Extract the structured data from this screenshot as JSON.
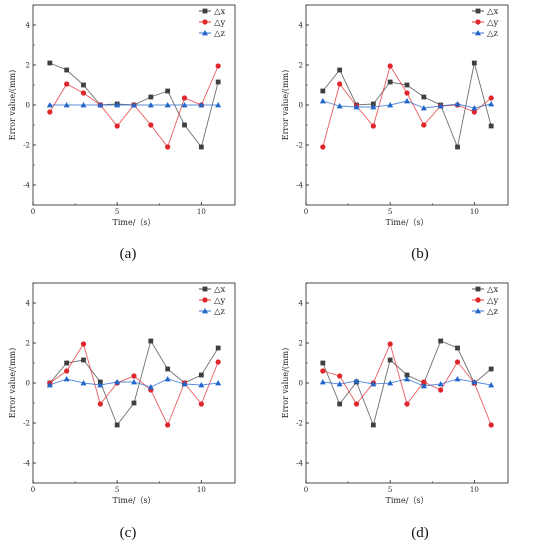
{
  "colors": {
    "dx": "#3f3f3f",
    "dy": "#e0262a",
    "dz": "#2266cc"
  },
  "chart_data": [
    {
      "type": "line",
      "caption": "(a)",
      "xlabel": "Time/（s）",
      "ylabel": "Error value/(mm)",
      "xlim": [
        0,
        12
      ],
      "ylim": [
        -5,
        5
      ],
      "xticks": [
        "0",
        "5",
        "10"
      ],
      "yticks": [
        "-4",
        "-2",
        "0",
        "2",
        "4"
      ],
      "legend_position": "top-right",
      "x": [
        1,
        2,
        3,
        4,
        5,
        6,
        7,
        8,
        9,
        10,
        11
      ],
      "series": [
        {
          "name": "△x",
          "marker": "square",
          "values": [
            2.1,
            1.75,
            1.0,
            0.0,
            0.05,
            0.0,
            0.4,
            0.7,
            -1.0,
            -2.1,
            1.15
          ]
        },
        {
          "name": "△y",
          "marker": "circle",
          "values": [
            -0.35,
            1.05,
            0.6,
            0.0,
            -1.05,
            0.0,
            -1.0,
            -2.1,
            0.35,
            0.0,
            1.95
          ]
        },
        {
          "name": "△z",
          "marker": "triangle",
          "values": [
            0.0,
            0.0,
            0.0,
            0.0,
            0.0,
            0.0,
            0.0,
            0.0,
            0.0,
            0.0,
            0.0
          ]
        }
      ]
    },
    {
      "type": "line",
      "caption": "(b)",
      "xlabel": "Time/（s）",
      "ylabel": "Error value/(mm)",
      "xlim": [
        0,
        12
      ],
      "ylim": [
        -5,
        5
      ],
      "xticks": [
        "0",
        "5",
        "10"
      ],
      "yticks": [
        "-4",
        "-2",
        "0",
        "2",
        "4"
      ],
      "legend_position": "top-right",
      "x": [
        1,
        2,
        3,
        4,
        5,
        6,
        7,
        8,
        9,
        10,
        11
      ],
      "series": [
        {
          "name": "△x",
          "marker": "square",
          "values": [
            0.7,
            1.75,
            0.0,
            0.05,
            1.15,
            1.0,
            0.4,
            0.0,
            -2.1,
            2.1,
            -1.05
          ]
        },
        {
          "name": "△y",
          "marker": "circle",
          "values": [
            -2.1,
            1.05,
            -0.05,
            -1.05,
            1.95,
            0.6,
            -1.0,
            -0.05,
            0.0,
            -0.35,
            0.35
          ]
        },
        {
          "name": "△z",
          "marker": "triangle",
          "values": [
            0.2,
            -0.05,
            -0.1,
            -0.1,
            0.0,
            0.2,
            -0.15,
            -0.05,
            0.05,
            -0.15,
            0.05
          ]
        }
      ]
    },
    {
      "type": "line",
      "caption": "(c)",
      "xlabel": "Time/（s）",
      "ylabel": "Error value/(mm)",
      "xlim": [
        0,
        12
      ],
      "ylim": [
        -5,
        5
      ],
      "xticks": [
        "0",
        "5",
        "10"
      ],
      "yticks": [
        "-4",
        "-2",
        "0",
        "2",
        "4"
      ],
      "legend_position": "top-right",
      "x": [
        1,
        2,
        3,
        4,
        5,
        6,
        7,
        8,
        9,
        10,
        11
      ],
      "series": [
        {
          "name": "△x",
          "marker": "square",
          "values": [
            0.0,
            1.0,
            1.15,
            0.05,
            -2.1,
            -1.0,
            2.1,
            0.7,
            0.0,
            0.4,
            1.75
          ]
        },
        {
          "name": "△y",
          "marker": "circle",
          "values": [
            0.0,
            0.6,
            1.95,
            -1.05,
            0.0,
            0.35,
            -0.35,
            -2.1,
            0.0,
            -1.05,
            1.05
          ]
        },
        {
          "name": "△z",
          "marker": "triangle",
          "values": [
            -0.1,
            0.2,
            0.0,
            -0.1,
            0.05,
            0.05,
            -0.2,
            0.2,
            -0.05,
            -0.1,
            0.0
          ]
        }
      ]
    },
    {
      "type": "line",
      "caption": "(d)",
      "xlabel": "Time/（s）",
      "ylabel": "Error value/(mm)",
      "xlim": [
        0,
        12
      ],
      "ylim": [
        -5,
        5
      ],
      "xticks": [
        "0",
        "5",
        "10"
      ],
      "yticks": [
        "-4",
        "-2",
        "0",
        "2",
        "4"
      ],
      "legend_position": "top-right",
      "x": [
        1,
        2,
        3,
        4,
        5,
        6,
        7,
        8,
        9,
        10,
        11
      ],
      "series": [
        {
          "name": "△x",
          "marker": "square",
          "values": [
            1.0,
            -1.05,
            0.05,
            -2.1,
            1.15,
            0.4,
            0.0,
            2.1,
            1.75,
            0.0,
            0.7
          ]
        },
        {
          "name": "△y",
          "marker": "circle",
          "values": [
            0.6,
            0.35,
            -1.05,
            0.0,
            1.95,
            -1.05,
            0.05,
            -0.35,
            1.05,
            0.0,
            -2.1
          ]
        },
        {
          "name": "△z",
          "marker": "triangle",
          "values": [
            0.05,
            -0.05,
            0.1,
            -0.05,
            0.0,
            0.2,
            -0.15,
            -0.05,
            0.2,
            0.05,
            -0.1
          ]
        }
      ]
    }
  ]
}
